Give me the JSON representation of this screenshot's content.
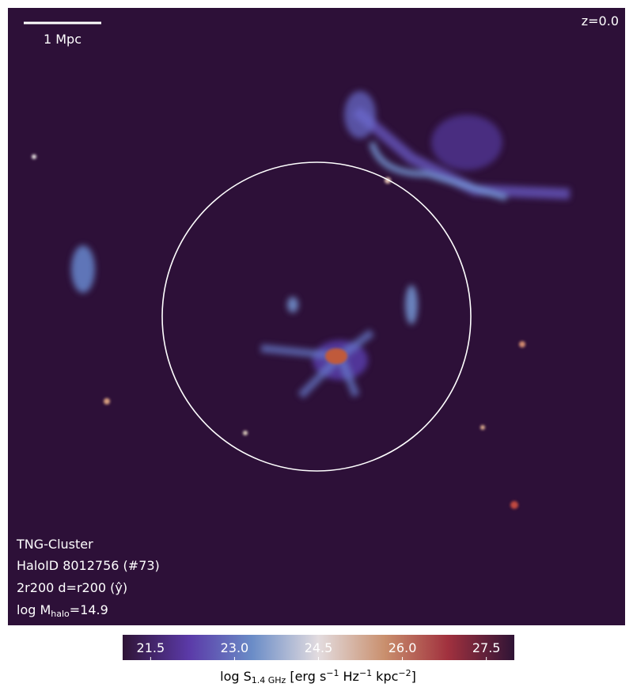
{
  "map": {
    "scale_bar_label": "1 Mpc",
    "redshift_label": "z=0.0",
    "info": [
      "TNG-Cluster",
      "HaloID 8012756 (#73)",
      "2r200 d=r200 (ŷ)"
    ],
    "mass_label": {
      "prefix": "log M",
      "subscript": "halo",
      "suffix": "=14.9"
    }
  },
  "colorbar": {
    "range": [
      21,
      28
    ],
    "ticks": [
      {
        "value": 21.5,
        "label": "21.5"
      },
      {
        "value": 23.0,
        "label": "23.0"
      },
      {
        "value": 24.5,
        "label": "24.5"
      },
      {
        "value": 26.0,
        "label": "26.0"
      },
      {
        "value": 27.5,
        "label": "27.5"
      }
    ],
    "label": {
      "prefix": "log S",
      "subscript": "1.4 GHz",
      "unit1": "[erg s",
      "exp1": "−1",
      "unit2": "Hz",
      "exp2": "−1",
      "unit3": "kpc",
      "exp3": "−2",
      "close": "]"
    }
  }
}
